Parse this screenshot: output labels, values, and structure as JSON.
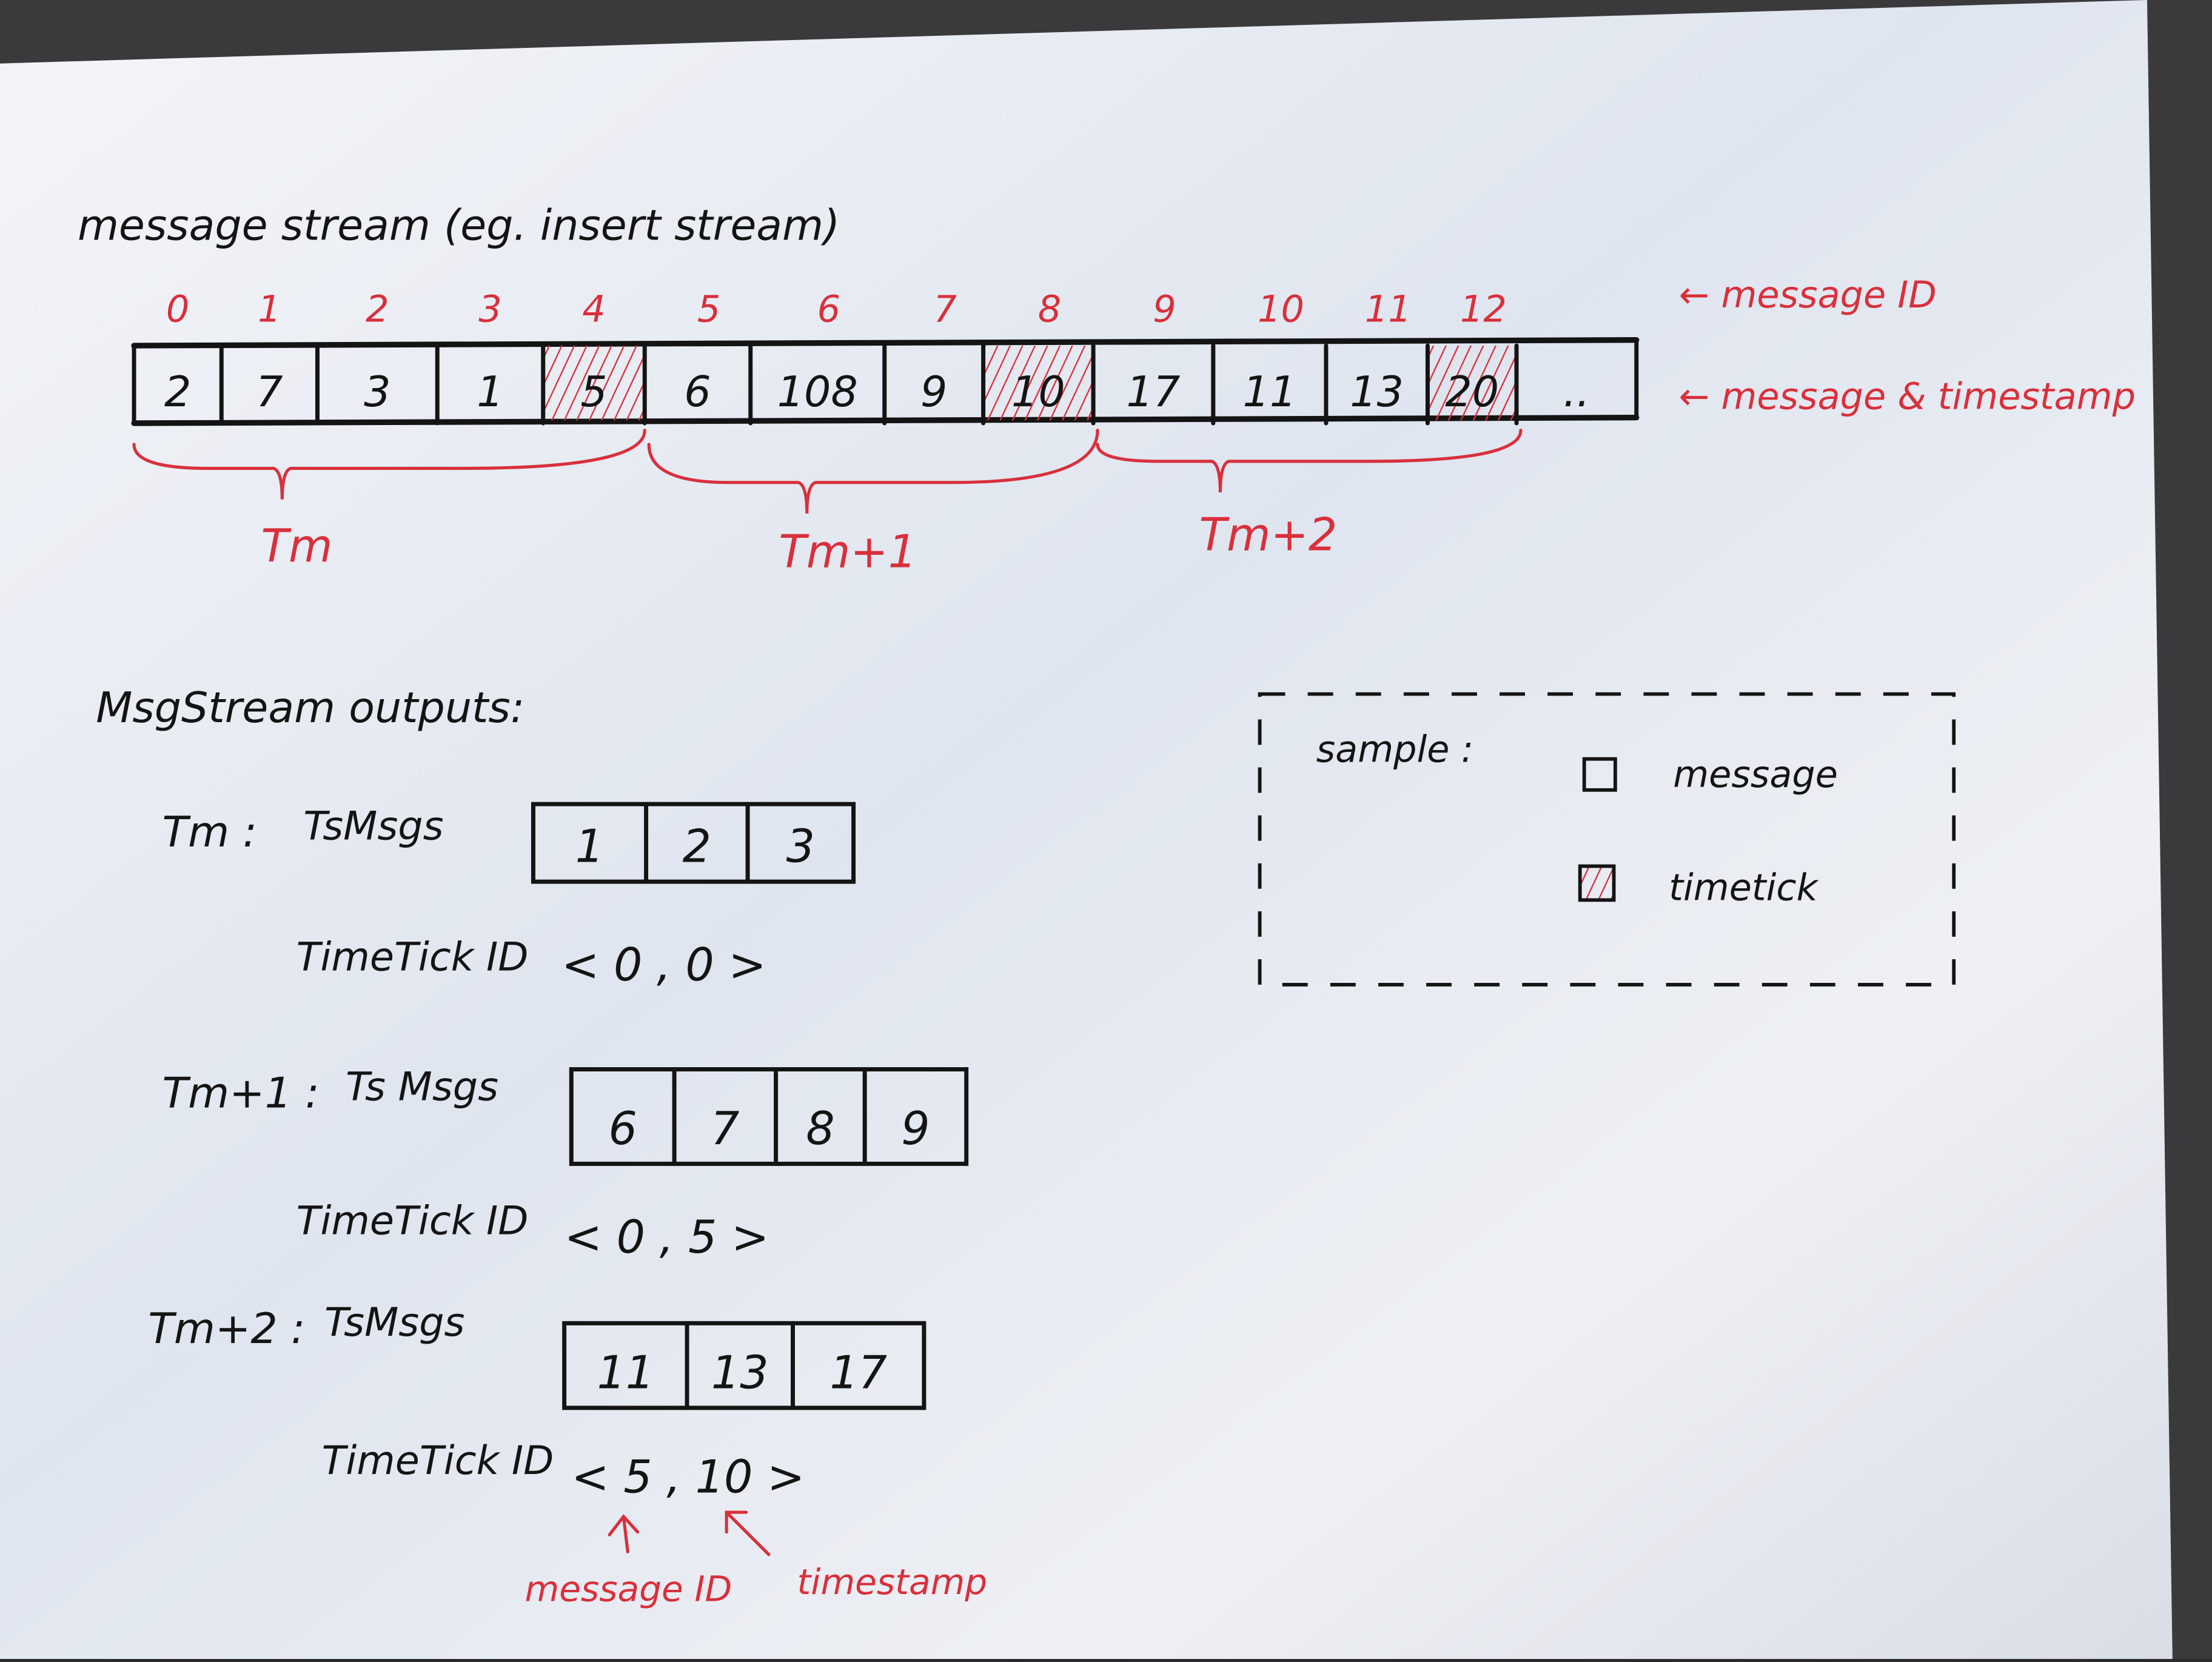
{
  "title": "message stream (eg. insert stream)",
  "stream": {
    "message_ids": [
      "0",
      "1",
      "2",
      "3",
      "4",
      "5",
      "6",
      "7",
      "8",
      "9",
      "10",
      "11",
      "12"
    ],
    "timestamps": [
      "2",
      "7",
      "3",
      "1",
      "5",
      "6",
      "108",
      "9",
      "10",
      "17",
      "11",
      "13",
      "20",
      ".."
    ],
    "timetick_flags": [
      false,
      false,
      false,
      false,
      true,
      false,
      false,
      false,
      true,
      false,
      false,
      false,
      true,
      false
    ],
    "label_message_id": "← message ID",
    "label_message_timestamp": "← message & timestamp",
    "ranges": [
      {
        "label": "Tm"
      },
      {
        "label": "Tm+1"
      },
      {
        "label": "Tm+2"
      }
    ]
  },
  "outputs": {
    "heading": "MsgStream outputs:",
    "groups": [
      {
        "label": "Tm :",
        "msgs_label": "TsMsgs",
        "msgs": [
          "1",
          "2",
          "3"
        ],
        "tick_label": "TimeTick ID",
        "tick_value": "< 0 , 0 >"
      },
      {
        "label": "Tm+1 :",
        "msgs_label": "Ts Msgs",
        "msgs": [
          "6",
          "7",
          "8",
          "9"
        ],
        "tick_label": "TimeTick ID",
        "tick_value": "< 0 , 5 >"
      },
      {
        "label": "Tm+2 :",
        "msgs_label": "TsMsgs",
        "msgs": [
          "11",
          "13",
          "17"
        ],
        "tick_label": "TimeTick ID",
        "tick_value": "< 5 , 10 >"
      }
    ],
    "annotation_message_id": "message ID",
    "annotation_timestamp": "timestamp"
  },
  "legend": {
    "title": "sample :",
    "items": [
      {
        "label": "message",
        "type": "message"
      },
      {
        "label": "timetick",
        "type": "timetick"
      }
    ]
  },
  "colors": {
    "ink": "#141414",
    "red_pen": "#d8303c",
    "paper": "#eef0f4"
  }
}
